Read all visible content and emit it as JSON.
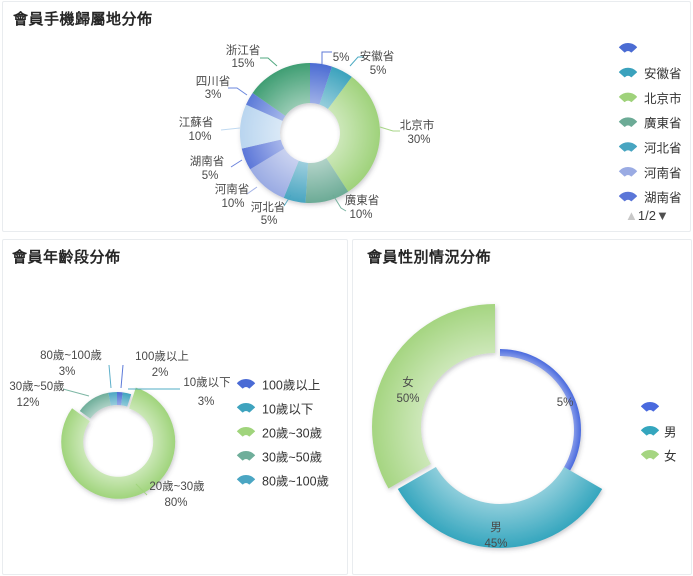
{
  "panels": {
    "phone": {
      "title": "會員手機歸屬地分佈",
      "legend_page": "1/2",
      "chart_data": {
        "type": "pie",
        "donut": true,
        "unit": "%",
        "slices": [
          {
            "name": "",
            "value": 5,
            "color": "#4b6cd3"
          },
          {
            "name": "安徽省",
            "value": 5,
            "color": "#3ba2bd"
          },
          {
            "name": "北京市",
            "value": 30,
            "color": "#9fd27b"
          },
          {
            "name": "廣東省",
            "value": 10,
            "color": "#6cab96"
          },
          {
            "name": "河北省",
            "value": 5,
            "color": "#48a5c1"
          },
          {
            "name": "河南省",
            "value": 10,
            "color": "#9aabe3"
          },
          {
            "name": "湖南省",
            "value": 5,
            "color": "#5b76d8"
          },
          {
            "name": "江蘇省",
            "value": 10,
            "color": "#b9d5ef"
          },
          {
            "name": "四川省",
            "value": 3,
            "color": "#5b7ad8"
          },
          {
            "name": "浙江省",
            "value": 15,
            "color": "#3f9e73"
          }
        ],
        "legend_visible_count": 7,
        "legend_position": "right"
      }
    },
    "age": {
      "title": "會員年齡段分佈",
      "chart_data": {
        "type": "pie",
        "donut": true,
        "unit": "%",
        "slices": [
          {
            "name": "100歲以上",
            "value": 2,
            "color": "#4a6bd5"
          },
          {
            "name": "10歲以下",
            "value": 3,
            "color": "#3fa3be"
          },
          {
            "name": "20歲~30歲",
            "value": 80,
            "color": "#a0d47c"
          },
          {
            "name": "30歲~50歲",
            "value": 12,
            "color": "#6fae9a"
          },
          {
            "name": "80歲~100歲",
            "value": 3,
            "color": "#4ba6c3"
          }
        ],
        "legend_position": "right"
      }
    },
    "gender": {
      "title": "會員性別情況分佈",
      "chart_data": {
        "type": "pie",
        "donut": true,
        "rose": "area",
        "unit": "%",
        "slices": [
          {
            "name": "",
            "value": 5,
            "color": "#4a6ade"
          },
          {
            "name": "男",
            "value": 45,
            "color": "#35a6be"
          },
          {
            "name": "女",
            "value": 50,
            "color": "#a5d581"
          }
        ],
        "legend_position": "right"
      }
    }
  }
}
